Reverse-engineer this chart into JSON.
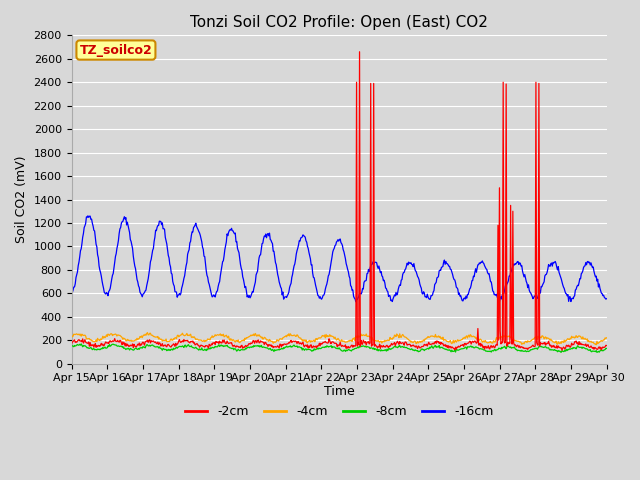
{
  "title": "Tonzi Soil CO2 Profile: Open (East) CO2",
  "ylabel": "Soil CO2 (mV)",
  "xlabel": "Time",
  "ylim": [
    0,
    2800
  ],
  "yticks": [
    0,
    200,
    400,
    600,
    800,
    1000,
    1200,
    1400,
    1600,
    1800,
    2000,
    2200,
    2400,
    2600,
    2800
  ],
  "fig_bg_color": "#d8d8d8",
  "plot_bg_color": "#d8d8d8",
  "grid_color": "#ffffff",
  "colors": {
    "2cm": "#ff0000",
    "4cm": "#ffa500",
    "8cm": "#00cc00",
    "16cm": "#0000ff"
  },
  "legend_labels": [
    "-2cm",
    "-4cm",
    "-8cm",
    "-16cm"
  ],
  "annotation_text": "TZ_soilco2",
  "annotation_bg": "#ffff99",
  "annotation_border": "#cc8800",
  "title_fontsize": 11,
  "axis_label_fontsize": 9,
  "tick_fontsize": 8,
  "legend_fontsize": 9
}
